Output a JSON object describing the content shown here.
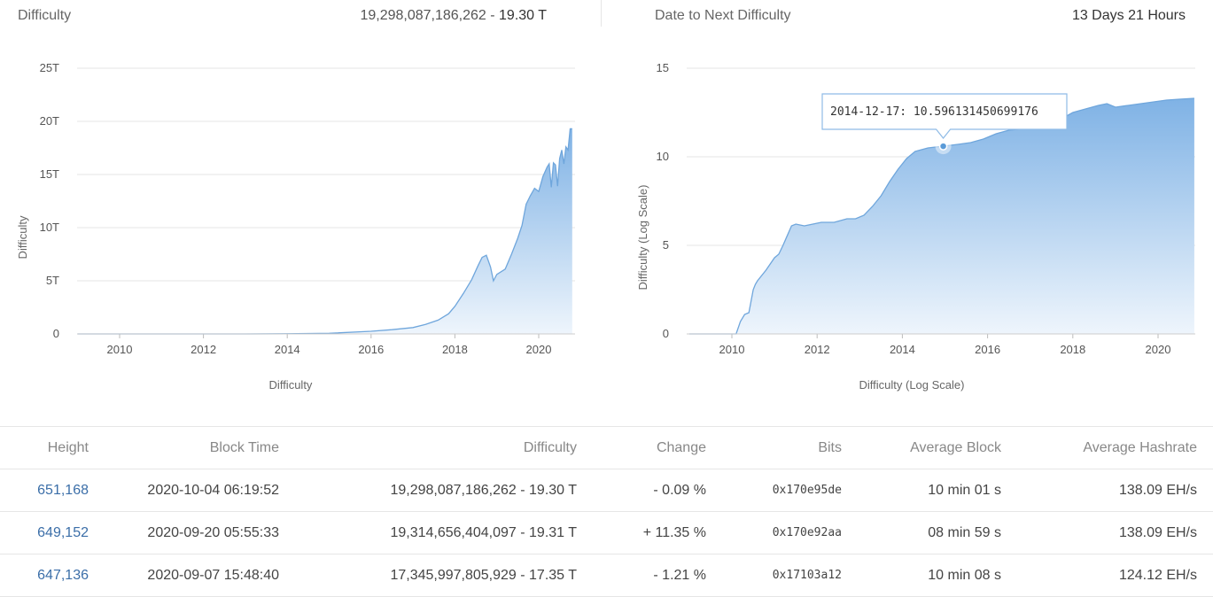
{
  "header": {
    "difficulty_label": "Difficulty",
    "difficulty_value": "19,298,087,186,262",
    "difficulty_sep": " - ",
    "difficulty_short": "19.30 T",
    "next_label": "Date to Next Difficulty",
    "next_value": "13 Days 21 Hours"
  },
  "chart_data": [
    {
      "type": "area",
      "title": "",
      "xlabel": "Difficulty",
      "ylabel": "Difficulty",
      "x_ticks": [
        "2010",
        "2012",
        "2014",
        "2016",
        "2018",
        "2020"
      ],
      "y_ticks": [
        "0",
        "5T",
        "10T",
        "15T",
        "20T",
        "25T"
      ],
      "xlim": [
        2009.0,
        2020.85
      ],
      "ylim": [
        0,
        25
      ],
      "y_unit": "T",
      "grid": true,
      "x": [
        2009.0,
        2013.0,
        2014.0,
        2015.0,
        2016.0,
        2016.5,
        2017.0,
        2017.3,
        2017.6,
        2017.85,
        2018.0,
        2018.2,
        2018.4,
        2018.55,
        2018.65,
        2018.75,
        2018.85,
        2018.92,
        2019.0,
        2019.2,
        2019.35,
        2019.5,
        2019.6,
        2019.7,
        2019.8,
        2019.9,
        2020.0,
        2020.1,
        2020.2,
        2020.25,
        2020.3,
        2020.35,
        2020.4,
        2020.45,
        2020.5,
        2020.55,
        2020.6,
        2020.65,
        2020.7,
        2020.75,
        2020.8
      ],
      "values": [
        0,
        0.0,
        0.02,
        0.06,
        0.25,
        0.4,
        0.6,
        0.9,
        1.3,
        1.9,
        2.6,
        3.8,
        5.1,
        6.4,
        7.2,
        7.4,
        6.3,
        5.0,
        5.6,
        6.1,
        7.5,
        9.0,
        10.2,
        12.2,
        13.0,
        13.7,
        13.4,
        14.8,
        15.7,
        16.0,
        13.8,
        16.1,
        15.9,
        13.9,
        16.5,
        17.3,
        16.0,
        17.6,
        17.3,
        19.3,
        19.3
      ]
    },
    {
      "type": "area",
      "title": "",
      "xlabel": "Difficulty (Log Scale)",
      "ylabel": "Difficulty (Log Scale)",
      "x_ticks": [
        "2010",
        "2012",
        "2014",
        "2016",
        "2018",
        "2020"
      ],
      "y_ticks": [
        "0",
        "5",
        "10",
        "15"
      ],
      "xlim": [
        2009.0,
        2020.85
      ],
      "ylim": [
        0,
        15
      ],
      "grid": true,
      "x": [
        2009.0,
        2010.1,
        2010.2,
        2010.3,
        2010.4,
        2010.5,
        2010.55,
        2010.6,
        2010.8,
        2011.0,
        2011.1,
        2011.2,
        2011.4,
        2011.5,
        2011.7,
        2011.9,
        2012.1,
        2012.4,
        2012.7,
        2012.9,
        2013.1,
        2013.3,
        2013.5,
        2013.7,
        2013.9,
        2014.1,
        2014.3,
        2014.6,
        2014.96,
        2015.3,
        2015.6,
        2015.9,
        2016.2,
        2016.5,
        2016.9,
        2017.3,
        2017.7,
        2018.0,
        2018.3,
        2018.6,
        2018.8,
        2019.0,
        2019.3,
        2019.6,
        2019.9,
        2020.2,
        2020.5,
        2020.85
      ],
      "values": [
        0,
        0,
        0.7,
        1.1,
        1.2,
        2.5,
        2.8,
        3.0,
        3.6,
        4.3,
        4.5,
        5.0,
        6.1,
        6.2,
        6.1,
        6.2,
        6.3,
        6.3,
        6.5,
        6.5,
        6.7,
        7.2,
        7.8,
        8.6,
        9.3,
        9.9,
        10.3,
        10.5,
        10.6,
        10.7,
        10.8,
        11.0,
        11.3,
        11.5,
        11.6,
        11.9,
        12.1,
        12.5,
        12.7,
        12.9,
        13.0,
        12.8,
        12.9,
        13.0,
        13.1,
        13.2,
        13.25,
        13.3
      ],
      "tooltip": {
        "date": "2014-12-17",
        "value": "10.596131450699176",
        "text": "2014-12-17: 10.596131450699176",
        "x": 2014.96,
        "y": 10.596
      }
    }
  ],
  "table": {
    "headers": [
      "Height",
      "Block Time",
      "Difficulty",
      "Change",
      "Bits",
      "Average Block",
      "Average Hashrate"
    ],
    "rows": [
      {
        "height": "651,168",
        "time": "2020-10-04 06:19:52",
        "difficulty": "19,298,087,186,262 - 19.30 T",
        "change": "- 0.09 %",
        "change_dir": "neg",
        "bits": "0x170e95de",
        "avg_block": "10 min 01 s",
        "hashrate": "138.09 EH/s"
      },
      {
        "height": "649,152",
        "time": "2020-09-20 05:55:33",
        "difficulty": "19,314,656,404,097 - 19.31 T",
        "change": "+ 11.35 %",
        "change_dir": "pos",
        "bits": "0x170e92aa",
        "avg_block": "08 min 59 s",
        "hashrate": "138.09 EH/s"
      },
      {
        "height": "647,136",
        "time": "2020-09-07 15:48:40",
        "difficulty": "17,345,997,805,929 - 17.35 T",
        "change": "- 1.21 %",
        "change_dir": "neg",
        "bits": "0x17103a12",
        "avg_block": "10 min 08 s",
        "hashrate": "124.12 EH/s"
      }
    ]
  },
  "colors": {
    "area_top": "#7fb2e5",
    "area_bottom": "#eef5fc",
    "line": "#6fa6dc",
    "grid": "#e6e6e6",
    "link": "#3b6ea8",
    "negative": "#d0021b",
    "positive": "#2e7d32"
  }
}
